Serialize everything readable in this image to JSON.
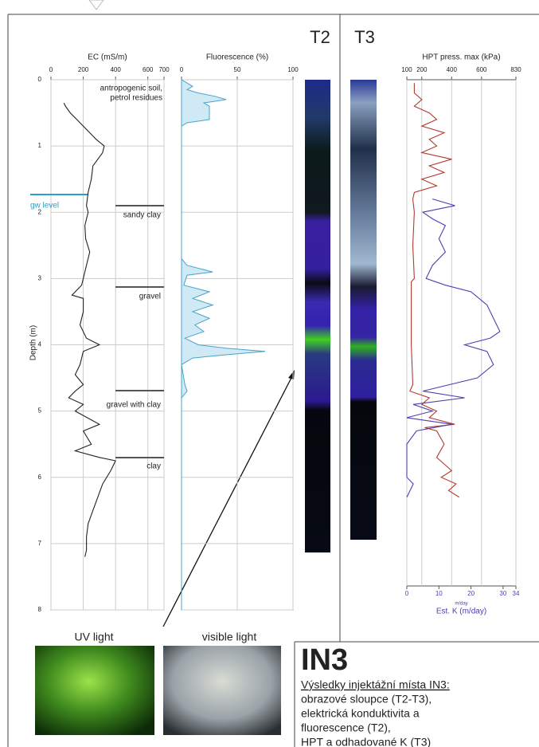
{
  "chart_data": [
    {
      "type": "line",
      "orientation": "vertical",
      "title": "EC (mS/m)",
      "xlabel": "Depth (m)",
      "xlim": [
        0,
        8
      ],
      "xticks": [
        0,
        1,
        2,
        3,
        4,
        5,
        6,
        7,
        8
      ],
      "ylim": [
        0,
        700
      ],
      "yticks": [
        0,
        200,
        400,
        600,
        700
      ],
      "grid": true,
      "annotations": [
        "antropogenic soil,",
        "petrol residues",
        "gw level",
        "sandy clay",
        "gravel",
        "gravel with clay",
        "clay"
      ],
      "x": [
        0.35,
        0.4,
        0.5,
        0.6,
        0.7,
        0.8,
        0.9,
        1.0,
        1.1,
        1.2,
        1.3,
        1.5,
        1.7,
        1.9,
        2.0,
        2.2,
        2.4,
        2.6,
        2.8,
        3.0,
        3.1,
        3.25,
        3.3,
        3.5,
        3.7,
        3.9,
        4.0,
        4.1,
        4.3,
        4.45,
        4.6,
        4.7,
        4.8,
        4.9,
        5.0,
        5.2,
        5.3,
        5.5,
        5.6,
        5.7,
        5.75,
        5.9,
        6.1,
        6.3,
        6.5,
        6.7,
        6.9,
        7.1,
        7.2
      ],
      "series": [
        {
          "color": "#222222",
          "values": [
            80,
            90,
            120,
            160,
            200,
            240,
            280,
            330,
            320,
            290,
            260,
            250,
            230,
            220,
            230,
            210,
            215,
            240,
            220,
            200,
            190,
            130,
            200,
            200,
            180,
            220,
            300,
            200,
            180,
            150,
            200,
            150,
            110,
            200,
            150,
            300,
            200,
            250,
            150,
            300,
            400,
            370,
            320,
            290,
            260,
            230,
            220,
            220,
            210
          ]
        }
      ]
    },
    {
      "type": "area",
      "orientation": "vertical",
      "title": "Fluorescence (%)",
      "xlim": [
        0,
        8
      ],
      "xticks": [
        0,
        1,
        2,
        3,
        4,
        5,
        6,
        7,
        8
      ],
      "ylim": [
        0,
        100
      ],
      "yticks": [
        0,
        50,
        100
      ],
      "grid": true,
      "x": [
        0,
        0.1,
        0.15,
        0.2,
        0.25,
        0.3,
        0.35,
        0.4,
        0.5,
        0.6,
        0.65,
        0.7,
        2.7,
        2.8,
        2.9,
        2.95,
        3.1,
        3.2,
        3.3,
        3.4,
        3.5,
        3.6,
        3.7,
        3.8,
        3.9,
        4.0,
        4.05,
        4.1,
        4.15,
        4.2,
        4.3,
        4.6,
        4.7,
        4.8,
        8
      ],
      "series": [
        {
          "color": "#4aa3c8",
          "values": [
            0,
            10,
            5,
            15,
            30,
            40,
            20,
            25,
            25,
            25,
            5,
            0,
            0,
            5,
            28,
            5,
            2,
            25,
            10,
            28,
            10,
            25,
            12,
            20,
            3,
            15,
            40,
            75,
            40,
            10,
            0,
            3,
            5,
            0,
            0
          ]
        }
      ]
    },
    {
      "type": "line",
      "orientation": "vertical",
      "title": "HPT press. max (kPa)",
      "y2label": "Est. K (m/day)",
      "y2unit": "m/day",
      "xlim": [
        0,
        7.64
      ],
      "ylim": [
        100,
        830
      ],
      "yticks": [
        100,
        200,
        400,
        600,
        830
      ],
      "y2lim": [
        0,
        34
      ],
      "y2ticks": [
        0,
        10,
        20,
        30,
        34
      ],
      "grid": true,
      "series": [
        {
          "color": "#b03a2e",
          "x": [
            0.05,
            0.2,
            0.3,
            0.4,
            0.5,
            0.6,
            0.7,
            0.8,
            0.9,
            1.0,
            1.1,
            1.2,
            1.3,
            1.4,
            1.5,
            1.6,
            1.7,
            1.8,
            2.0,
            2.5,
            3.0,
            3.05,
            4.0,
            4.6,
            4.7,
            4.8,
            4.9,
            5.0,
            5.1,
            5.2,
            5.25,
            5.3,
            5.5,
            5.7,
            5.9,
            6.0,
            6.1,
            6.2,
            6.3
          ],
          "values": [
            150,
            150,
            200,
            150,
            250,
            300,
            200,
            350,
            250,
            300,
            200,
            400,
            250,
            350,
            200,
            300,
            150,
            140,
            150,
            140,
            150,
            130,
            130,
            140,
            120,
            250,
            200,
            300,
            250,
            420,
            220,
            300,
            350,
            300,
            400,
            330,
            430,
            380,
            450
          ]
        },
        {
          "color": "#4b3fb0",
          "axis": "y2",
          "x": [
            1.8,
            1.9,
            2.0,
            2.1,
            2.2,
            2.4,
            2.6,
            2.8,
            3.0,
            3.1,
            3.2,
            3.4,
            3.6,
            3.8,
            3.9,
            4.0,
            4.1,
            4.3,
            4.5,
            4.7,
            4.8,
            4.9,
            5.0,
            5.1,
            5.2,
            5.3,
            5.5,
            6.0,
            6.1,
            6.3
          ],
          "values": [
            8,
            15,
            5,
            8,
            12,
            10,
            12,
            8,
            6,
            12,
            20,
            25,
            27,
            29,
            26,
            18,
            25,
            27,
            22,
            5,
            18,
            2,
            8,
            0,
            14,
            3,
            0,
            0,
            2,
            0
          ]
        }
      ]
    }
  ],
  "columns": [
    "T2",
    "T3"
  ],
  "photos": [
    "UV light",
    "visible light"
  ],
  "summary": {
    "title": "IN3",
    "heading": "Výsledky injektážní místa IN3:",
    "lines": [
      "obrazové sloupce (T2-T3),",
      "elektrická konduktivita a",
      "fluorescence (T2),",
      "HPT a odhadované K (T3)"
    ]
  }
}
